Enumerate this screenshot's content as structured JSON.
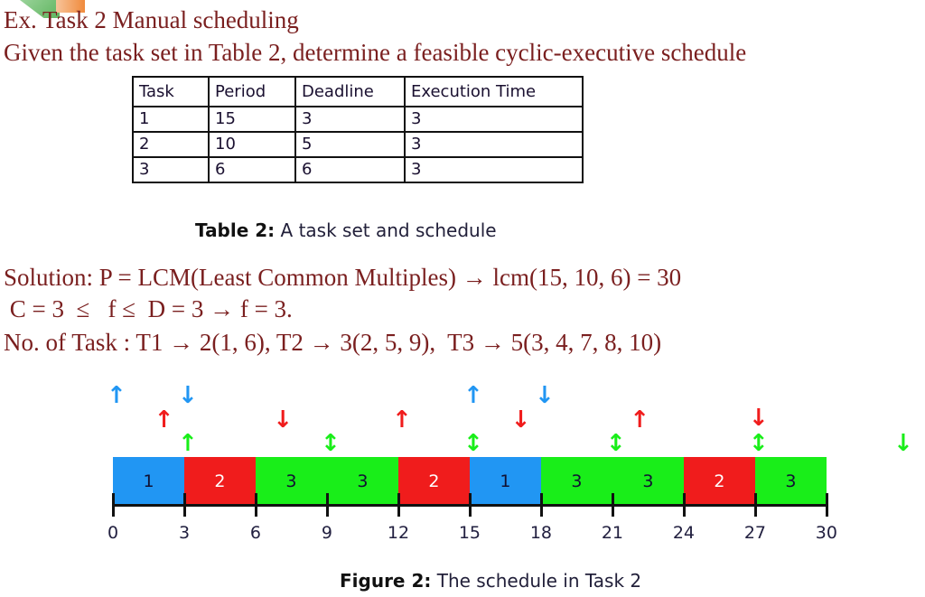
{
  "title": "Ex. Task 2 Manual scheduling",
  "subtitle": "Given the task set in Table 2, determine a feasible cyclic-executive schedule",
  "table": {
    "headers": [
      "Task",
      "Period",
      "Deadline",
      "Execution Time"
    ],
    "rows": [
      [
        "1",
        "15",
        "3",
        "3"
      ],
      [
        "2",
        "10",
        "5",
        "3"
      ],
      [
        "3",
        "6",
        "6",
        "3"
      ]
    ],
    "caption_label": "Table 2:",
    "caption_text": " A task set and schedule"
  },
  "solution": {
    "line1": "Solution: P = LCM(Least Common Multiples) → lcm(15, 10, 6) = 30",
    "line2": " C = 3  ≤   f ≤  D = 3 → f = 3.",
    "line3": "No. of Task : T1 → 2(1, 6), T2 → 3(2, 5, 9),  T3 → 5(3, 4, 7, 8, 10)"
  },
  "figure": {
    "caption_label": "Figure 2:",
    "caption_text": " The schedule in Task 2",
    "colors": {
      "task1": "#2196f3",
      "task2": "#f01c1c",
      "task3": "#19ee19"
    },
    "tick_labels": [
      "0",
      "3",
      "6",
      "9",
      "12",
      "15",
      "18",
      "21",
      "24",
      "27",
      "30"
    ],
    "blocks": [
      {
        "label": "1",
        "task": 1,
        "start": 0,
        "end": 3
      },
      {
        "label": "2",
        "task": 2,
        "start": 3,
        "end": 6
      },
      {
        "label": "3",
        "task": 3,
        "start": 6,
        "end": 9
      },
      {
        "label": "3",
        "task": 3,
        "start": 9,
        "end": 12
      },
      {
        "label": "2",
        "task": 2,
        "start": 12,
        "end": 15
      },
      {
        "label": "1",
        "task": 1,
        "start": 15,
        "end": 18
      },
      {
        "label": "3",
        "task": 3,
        "start": 18,
        "end": 21
      },
      {
        "label": "3",
        "task": 3,
        "start": 21,
        "end": 24
      },
      {
        "label": "2",
        "task": 2,
        "start": 24,
        "end": 27
      },
      {
        "label": "3",
        "task": 3,
        "start": 27,
        "end": 30
      }
    ],
    "arrows": [
      {
        "task": 1,
        "type": "release",
        "time": 0
      },
      {
        "task": 1,
        "type": "deadline",
        "time": 3
      },
      {
        "task": 1,
        "type": "release",
        "time": 15
      },
      {
        "task": 1,
        "type": "deadline",
        "time": 18
      },
      {
        "task": 2,
        "type": "release",
        "time": 2
      },
      {
        "task": 2,
        "type": "deadline",
        "time": 7
      },
      {
        "task": 2,
        "type": "release",
        "time": 12
      },
      {
        "task": 2,
        "type": "deadline",
        "time": 17
      },
      {
        "task": 2,
        "type": "release",
        "time": 22
      },
      {
        "task": 2,
        "type": "deadline",
        "time": 27
      },
      {
        "task": 3,
        "type": "release",
        "time": 3
      },
      {
        "task": 3,
        "type": "both",
        "time": 9
      },
      {
        "task": 3,
        "type": "both",
        "time": 15
      },
      {
        "task": 3,
        "type": "both",
        "time": 21
      },
      {
        "task": 3,
        "type": "both",
        "time": 27
      },
      {
        "task": 3,
        "type": "deadline",
        "time": 33
      }
    ]
  }
}
